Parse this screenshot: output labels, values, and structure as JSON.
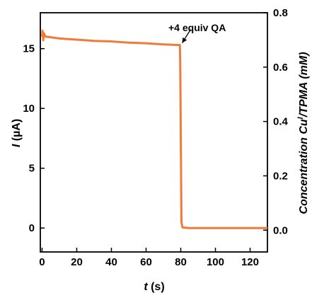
{
  "chart_data": {
    "type": "line",
    "xlabel_italic": "t",
    "xlabel_unit": " (s)",
    "ylabel_italic": "I",
    "ylabel_unit": " (µA)",
    "y2label_main": "Concentration Cu",
    "y2label_sup": "I",
    "y2label_tail": "/TPMA (mM)",
    "xlim": [
      -1,
      130
    ],
    "ylim": [
      -2,
      18
    ],
    "y2lim": [
      -0.08,
      0.8
    ],
    "xticks": [
      0,
      20,
      40,
      60,
      80,
      100,
      120
    ],
    "yticks": [
      0,
      5,
      10,
      15
    ],
    "y2ticks": [
      "0.0",
      "0.2",
      "0.4",
      "0.6",
      "0.8"
    ],
    "annotation": "+4 equiv QA",
    "annotation_point": [
      80,
      15.3
    ],
    "series": [
      {
        "color": "#F07A3A",
        "x": [
          0,
          0.3,
          0.7,
          1,
          2,
          5,
          10,
          20,
          30,
          40,
          50,
          60,
          70,
          79.5,
          79.7,
          80,
          80.4,
          81,
          85,
          90,
          100,
          110,
          120,
          130
        ],
        "y": [
          16.0,
          16.5,
          15.7,
          16.3,
          16.0,
          15.95,
          15.85,
          15.75,
          15.65,
          15.6,
          15.5,
          15.45,
          15.35,
          15.3,
          14.0,
          8.0,
          0.5,
          0.05,
          0.0,
          0.0,
          0.0,
          0.0,
          0.0,
          0.0
        ]
      }
    ]
  }
}
